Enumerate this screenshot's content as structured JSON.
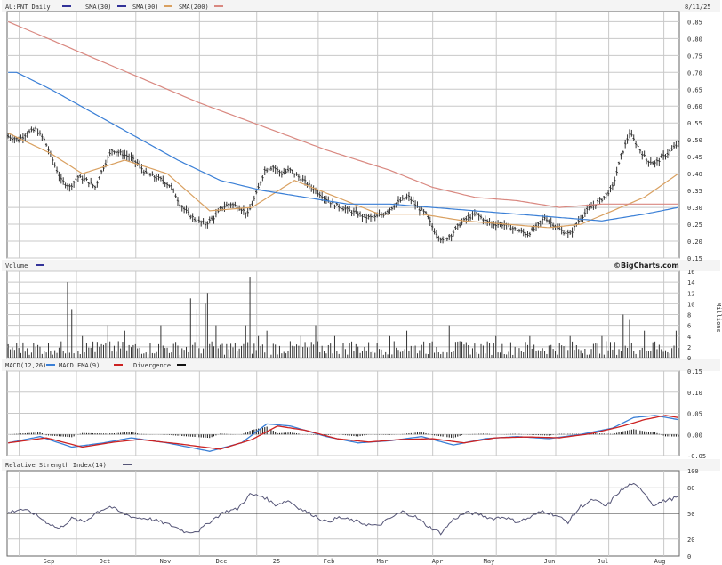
{
  "colors": {
    "sma30": "#333399",
    "sma90": "#d9a060",
    "sma200": "#d98880",
    "sma_long": "#3a7fd6",
    "price": "#333333",
    "volume": "#333333",
    "macd": "#3a7fd6",
    "macd_ema": "#cc2222",
    "divergence": "#111111",
    "rsi": "#555577",
    "grid": "#c8c8c8",
    "frame": "#666666"
  },
  "chart_data": [
    {
      "type": "line",
      "panel": "price",
      "title": "AU:PNT Daily",
      "legend": [
        "SMA(30)",
        "SMA(90)",
        "SMA(200)"
      ],
      "date_label": "8/11/25",
      "ylim": [
        0.15,
        0.88
      ],
      "yticks": [
        "0.85",
        "0.80",
        "0.75",
        "0.70",
        "0.65",
        "0.60",
        "0.55",
        "0.50",
        "0.45",
        "0.40",
        "0.35",
        "0.30",
        "0.25",
        "0.20",
        "0.15"
      ],
      "xticks": [
        "Sep",
        "Oct",
        "Nov",
        "Dec",
        "25",
        "Feb",
        "Mar",
        "Apr",
        "May",
        "Jun",
        "Jul",
        "Aug"
      ],
      "price_anchors": [
        [
          0,
          0.51
        ],
        [
          5,
          0.5
        ],
        [
          9,
          0.52
        ],
        [
          13,
          0.53
        ],
        [
          17,
          0.5
        ],
        [
          21,
          0.44
        ],
        [
          25,
          0.38
        ],
        [
          29,
          0.36
        ],
        [
          33,
          0.39
        ],
        [
          37,
          0.38
        ],
        [
          41,
          0.36
        ],
        [
          45,
          0.42
        ],
        [
          49,
          0.47
        ],
        [
          53,
          0.46
        ],
        [
          57,
          0.45
        ],
        [
          61,
          0.43
        ],
        [
          65,
          0.4
        ],
        [
          69,
          0.39
        ],
        [
          73,
          0.38
        ],
        [
          77,
          0.36
        ],
        [
          81,
          0.31
        ],
        [
          85,
          0.28
        ],
        [
          89,
          0.26
        ],
        [
          93,
          0.25
        ],
        [
          97,
          0.27
        ],
        [
          101,
          0.3
        ],
        [
          105,
          0.31
        ],
        [
          109,
          0.3
        ],
        [
          113,
          0.28
        ],
        [
          117,
          0.34
        ],
        [
          121,
          0.41
        ],
        [
          125,
          0.42
        ],
        [
          129,
          0.4
        ],
        [
          133,
          0.41
        ],
        [
          137,
          0.39
        ],
        [
          141,
          0.37
        ],
        [
          145,
          0.35
        ],
        [
          149,
          0.33
        ],
        [
          153,
          0.31
        ],
        [
          157,
          0.3
        ],
        [
          161,
          0.29
        ],
        [
          165,
          0.28
        ],
        [
          169,
          0.27
        ],
        [
          173,
          0.27
        ],
        [
          177,
          0.28
        ],
        [
          181,
          0.3
        ],
        [
          185,
          0.32
        ],
        [
          189,
          0.33
        ],
        [
          193,
          0.3
        ],
        [
          197,
          0.28
        ],
        [
          201,
          0.23
        ],
        [
          205,
          0.2
        ],
        [
          209,
          0.22
        ],
        [
          213,
          0.25
        ],
        [
          217,
          0.27
        ],
        [
          221,
          0.28
        ],
        [
          225,
          0.26
        ],
        [
          229,
          0.25
        ],
        [
          233,
          0.25
        ],
        [
          237,
          0.24
        ],
        [
          241,
          0.23
        ],
        [
          245,
          0.22
        ],
        [
          249,
          0.24
        ],
        [
          253,
          0.27
        ],
        [
          257,
          0.25
        ],
        [
          261,
          0.23
        ],
        [
          265,
          0.22
        ],
        [
          269,
          0.26
        ],
        [
          273,
          0.29
        ],
        [
          277,
          0.31
        ],
        [
          281,
          0.33
        ],
        [
          285,
          0.36
        ],
        [
          289,
          0.45
        ],
        [
          293,
          0.52
        ],
        [
          297,
          0.48
        ],
        [
          301,
          0.44
        ],
        [
          305,
          0.43
        ],
        [
          309,
          0.45
        ],
        [
          313,
          0.47
        ],
        [
          316,
          0.49
        ]
      ],
      "sma30_anchors": [
        [
          0,
          0.52
        ],
        [
          20,
          0.46
        ],
        [
          35,
          0.4
        ],
        [
          55,
          0.44
        ],
        [
          75,
          0.4
        ],
        [
          95,
          0.29
        ],
        [
          115,
          0.3
        ],
        [
          135,
          0.38
        ],
        [
          155,
          0.33
        ],
        [
          175,
          0.28
        ],
        [
          195,
          0.28
        ],
        [
          215,
          0.26
        ],
        [
          235,
          0.25
        ],
        [
          255,
          0.24
        ],
        [
          270,
          0.25
        ],
        [
          285,
          0.29
        ],
        [
          300,
          0.33
        ],
        [
          316,
          0.4
        ]
      ],
      "sma90_anchors": [
        [
          4,
          0.7
        ],
        [
          20,
          0.65
        ],
        [
          40,
          0.58
        ],
        [
          60,
          0.51
        ],
        [
          80,
          0.44
        ],
        [
          100,
          0.38
        ],
        [
          120,
          0.35
        ],
        [
          140,
          0.33
        ],
        [
          160,
          0.31
        ],
        [
          180,
          0.31
        ],
        [
          200,
          0.3
        ],
        [
          220,
          0.29
        ],
        [
          240,
          0.28
        ],
        [
          260,
          0.27
        ],
        [
          280,
          0.26
        ],
        [
          300,
          0.28
        ],
        [
          316,
          0.3
        ]
      ],
      "sma200_anchors": [
        [
          0,
          0.85
        ],
        [
          30,
          0.77
        ],
        [
          60,
          0.69
        ],
        [
          90,
          0.61
        ],
        [
          120,
          0.54
        ],
        [
          150,
          0.47
        ],
        [
          180,
          0.41
        ],
        [
          200,
          0.36
        ],
        [
          220,
          0.33
        ],
        [
          240,
          0.32
        ],
        [
          260,
          0.3
        ],
        [
          280,
          0.31
        ],
        [
          316,
          0.31
        ]
      ]
    },
    {
      "type": "bar",
      "panel": "volume",
      "title": "Volume",
      "credit": "©BigCharts.com",
      "ylabel": "Millions",
      "ylim": [
        0,
        16
      ],
      "yticks": [
        "16",
        "14",
        "12",
        "10",
        "8",
        "6",
        "4",
        "2",
        "0"
      ],
      "spikes": [
        [
          28,
          14
        ],
        [
          30,
          9
        ],
        [
          35,
          4
        ],
        [
          40,
          3
        ],
        [
          47,
          6
        ],
        [
          55,
          5
        ],
        [
          72,
          6
        ],
        [
          86,
          11
        ],
        [
          89,
          9
        ],
        [
          93,
          10
        ],
        [
          94,
          12
        ],
        [
          98,
          6
        ],
        [
          112,
          6
        ],
        [
          114,
          15
        ],
        [
          118,
          4
        ],
        [
          122,
          5
        ],
        [
          138,
          4
        ],
        [
          145,
          6
        ],
        [
          154,
          4
        ],
        [
          162,
          3
        ],
        [
          180,
          4
        ],
        [
          188,
          5
        ],
        [
          196,
          3
        ],
        [
          208,
          6
        ],
        [
          214,
          3
        ],
        [
          230,
          4
        ],
        [
          246,
          4
        ],
        [
          265,
          4
        ],
        [
          280,
          4
        ],
        [
          290,
          8
        ],
        [
          293,
          7
        ],
        [
          300,
          5
        ],
        [
          305,
          3
        ],
        [
          315,
          5
        ]
      ]
    },
    {
      "type": "line",
      "panel": "macd",
      "title": "MACD(12,26)",
      "legend": [
        "MACD EMA(9)",
        "Divergence"
      ],
      "ylim": [
        -0.05,
        0.15
      ],
      "yticks": [
        "0.15",
        "0.10",
        "0.05",
        "0.00",
        "-0.05"
      ],
      "macd_anchors": [
        [
          0,
          -0.02
        ],
        [
          15,
          -0.005
        ],
        [
          30,
          -0.03
        ],
        [
          45,
          -0.02
        ],
        [
          58,
          -0.008
        ],
        [
          75,
          -0.02
        ],
        [
          95,
          -0.04
        ],
        [
          110,
          -0.02
        ],
        [
          122,
          0.025
        ],
        [
          133,
          0.02
        ],
        [
          150,
          -0.005
        ],
        [
          165,
          -0.02
        ],
        [
          180,
          -0.015
        ],
        [
          195,
          -0.005
        ],
        [
          210,
          -0.025
        ],
        [
          225,
          -0.01
        ],
        [
          240,
          -0.005
        ],
        [
          255,
          -0.01
        ],
        [
          270,
          0.0
        ],
        [
          285,
          0.015
        ],
        [
          295,
          0.04
        ],
        [
          305,
          0.045
        ],
        [
          316,
          0.035
        ]
      ],
      "ema_anchors": [
        [
          0,
          -0.02
        ],
        [
          18,
          -0.008
        ],
        [
          35,
          -0.03
        ],
        [
          50,
          -0.018
        ],
        [
          62,
          -0.012
        ],
        [
          80,
          -0.022
        ],
        [
          100,
          -0.035
        ],
        [
          115,
          -0.012
        ],
        [
          127,
          0.02
        ],
        [
          140,
          0.01
        ],
        [
          155,
          -0.01
        ],
        [
          170,
          -0.018
        ],
        [
          185,
          -0.012
        ],
        [
          200,
          -0.01
        ],
        [
          215,
          -0.02
        ],
        [
          230,
          -0.008
        ],
        [
          245,
          -0.006
        ],
        [
          260,
          -0.008
        ],
        [
          275,
          0.002
        ],
        [
          290,
          0.02
        ],
        [
          300,
          0.035
        ],
        [
          310,
          0.045
        ],
        [
          316,
          0.04
        ]
      ]
    },
    {
      "type": "line",
      "panel": "rsi",
      "title": "Relative Strength Index(14)",
      "ylim": [
        0,
        100
      ],
      "yticks": [
        "100",
        "80",
        "50",
        "20",
        "0"
      ],
      "reference": 50,
      "rsi_anchors": [
        [
          0,
          51
        ],
        [
          6,
          55
        ],
        [
          12,
          50
        ],
        [
          18,
          40
        ],
        [
          24,
          32
        ],
        [
          30,
          44
        ],
        [
          36,
          40
        ],
        [
          42,
          52
        ],
        [
          48,
          58
        ],
        [
          54,
          50
        ],
        [
          60,
          45
        ],
        [
          66,
          44
        ],
        [
          72,
          40
        ],
        [
          78,
          35
        ],
        [
          84,
          28
        ],
        [
          90,
          30
        ],
        [
          96,
          42
        ],
        [
          102,
          52
        ],
        [
          108,
          55
        ],
        [
          114,
          72
        ],
        [
          120,
          70
        ],
        [
          126,
          60
        ],
        [
          132,
          65
        ],
        [
          138,
          55
        ],
        [
          144,
          48
        ],
        [
          150,
          40
        ],
        [
          156,
          45
        ],
        [
          162,
          42
        ],
        [
          168,
          38
        ],
        [
          174,
          35
        ],
        [
          180,
          44
        ],
        [
          186,
          52
        ],
        [
          192,
          46
        ],
        [
          198,
          35
        ],
        [
          204,
          27
        ],
        [
          210,
          43
        ],
        [
          216,
          51
        ],
        [
          222,
          49
        ],
        [
          228,
          44
        ],
        [
          234,
          46
        ],
        [
          240,
          40
        ],
        [
          246,
          45
        ],
        [
          252,
          53
        ],
        [
          258,
          48
        ],
        [
          264,
          40
        ],
        [
          270,
          58
        ],
        [
          276,
          66
        ],
        [
          282,
          58
        ],
        [
          288,
          75
        ],
        [
          294,
          85
        ],
        [
          300,
          75
        ],
        [
          304,
          60
        ],
        [
          310,
          65
        ],
        [
          316,
          69
        ]
      ]
    }
  ]
}
